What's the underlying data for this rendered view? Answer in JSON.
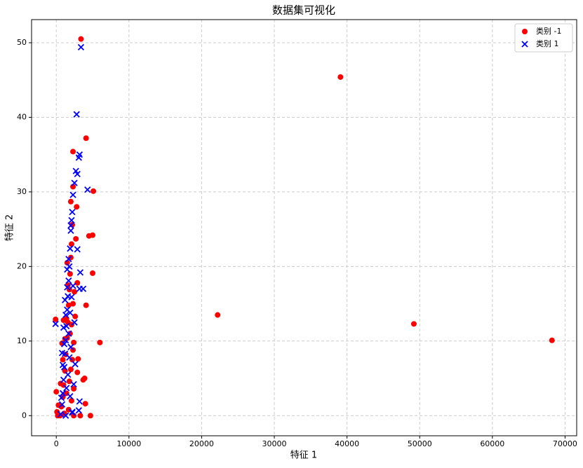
{
  "chart_data": {
    "type": "scatter",
    "title": "数据集可视化",
    "x_label": "特征 1",
    "y_label": "特征 2",
    "xlim": [
      -3400,
      71600
    ],
    "ylim": [
      -2.7,
      53.1
    ],
    "xticks": [
      0,
      10000,
      20000,
      30000,
      40000,
      50000,
      60000,
      70000
    ],
    "yticks": [
      0,
      10,
      20,
      30,
      40,
      50
    ],
    "grid": true,
    "legend": "upper right",
    "series": [
      {
        "name": "类别 -1",
        "color": "#ff0000",
        "marker": "o",
        "x": [
          39100,
          22200,
          49200,
          68200,
          3400,
          4100,
          2300,
          5100,
          4500,
          5000,
          5000,
          4100,
          6000,
          3700,
          3900,
          4700,
          4000,
          3300,
          -100,
          0,
          2800,
          2700,
          2900,
          3000,
          2900,
          2400,
          2600,
          2000,
          2300,
          1500,
          500,
          700,
          900,
          1000,
          1200,
          1300,
          1500,
          1600,
          1700,
          1800,
          1900,
          2000,
          2100,
          2200,
          1100,
          1400,
          1800,
          2000,
          2200,
          2300,
          1900,
          2100,
          2300,
          2500,
          1600,
          1400,
          1200,
          900,
          600,
          300,
          200,
          100,
          2100,
          2400,
          1700,
          2400,
          800,
          1000
        ],
        "y": [
          45.4,
          13.5,
          12.3,
          10.1,
          50.5,
          37.2,
          35.4,
          30.1,
          24.1,
          24.2,
          19.1,
          14.8,
          9.8,
          4.8,
          5.0,
          0,
          1.6,
          0,
          12.9,
          3.2,
          28.0,
          23.7,
          17.8,
          7.6,
          5.8,
          9.8,
          13.3,
          28.7,
          30.7,
          20.5,
          0,
          1.2,
          2.5,
          4.1,
          6.0,
          8.2,
          10.4,
          12.5,
          14.8,
          16.9,
          19.0,
          21.2,
          23.0,
          25.6,
          0.3,
          3.0,
          4.6,
          6.2,
          7.5,
          8.8,
          11.0,
          12.2,
          15.0,
          16.6,
          17.5,
          13.0,
          10.3,
          7.5,
          4.3,
          1.4,
          0,
          0.5,
          2.0,
          3.6,
          0.8,
          0,
          9.7,
          12.8
        ]
      },
      {
        "name": "类别 1",
        "color": "#0000ff",
        "marker": "x",
        "x": [
          3400,
          2800,
          3200,
          3100,
          2700,
          2900,
          4300,
          2500,
          2300,
          2200,
          2000,
          3300,
          3700,
          3200,
          2900,
          -100,
          3200,
          3100,
          2200,
          600,
          800,
          900,
          1000,
          1100,
          1200,
          1300,
          1400,
          1500,
          1600,
          1700,
          1800,
          1900,
          2000,
          2100,
          1500,
          1300,
          1100,
          900,
          700,
          1700,
          1900,
          2100,
          2300,
          2500,
          1600,
          1400,
          1800,
          2000,
          1200,
          1000,
          800,
          1500,
          1700,
          1900,
          2400,
          2600,
          2200,
          1300
        ],
        "y": [
          49.4,
          40.4,
          35.0,
          34.6,
          32.8,
          32.4,
          30.3,
          31.2,
          29.6,
          27.3,
          25.5,
          19.2,
          17.0,
          17.0,
          22.3,
          12.3,
          1.9,
          0.7,
          0.5,
          0.2,
          1.5,
          3.0,
          4.8,
          6.5,
          8.3,
          10.1,
          12.0,
          14.2,
          16.0,
          18.1,
          20.0,
          22.4,
          24.8,
          26.2,
          17.2,
          13.5,
          9.6,
          6.8,
          2.4,
          11.0,
          13.8,
          15.9,
          17.4,
          12.5,
          5.5,
          3.7,
          7.8,
          9.2,
          15.5,
          11.8,
          8.4,
          19.6,
          21.0,
          2.6,
          4.2,
          6.9,
          0.4,
          0
        ]
      }
    ]
  }
}
